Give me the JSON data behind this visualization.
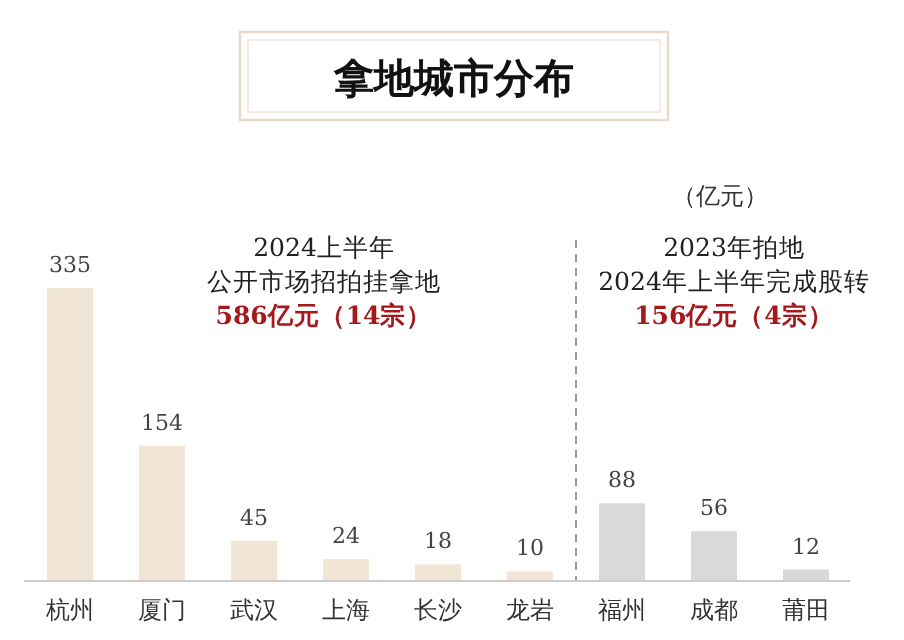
{
  "chart_data": {
    "type": "bar",
    "title": "拿地城市分布",
    "ylabel": "（亿元）",
    "categories": [
      "杭州",
      "厦门",
      "武汉",
      "上海",
      "长沙",
      "龙岩",
      "福州",
      "成都",
      "莆田"
    ],
    "values": [
      335,
      154,
      45,
      24,
      18,
      10,
      88,
      56,
      12
    ],
    "colors": [
      "#f1e6d6",
      "#f1e6d6",
      "#f1e6d6",
      "#f1e6d6",
      "#f1e6d6",
      "#f1e6d6",
      "#d9d9d9",
      "#d9d9d9",
      "#d9d9d9"
    ],
    "data_labels": true,
    "annotations": [
      "2024上半年",
      "公开市场招拍挂拿地",
      "586亿元（14宗）",
      "2023年拍地",
      "2024年上半年完成股转",
      "156亿元（4宗）"
    ]
  }
}
